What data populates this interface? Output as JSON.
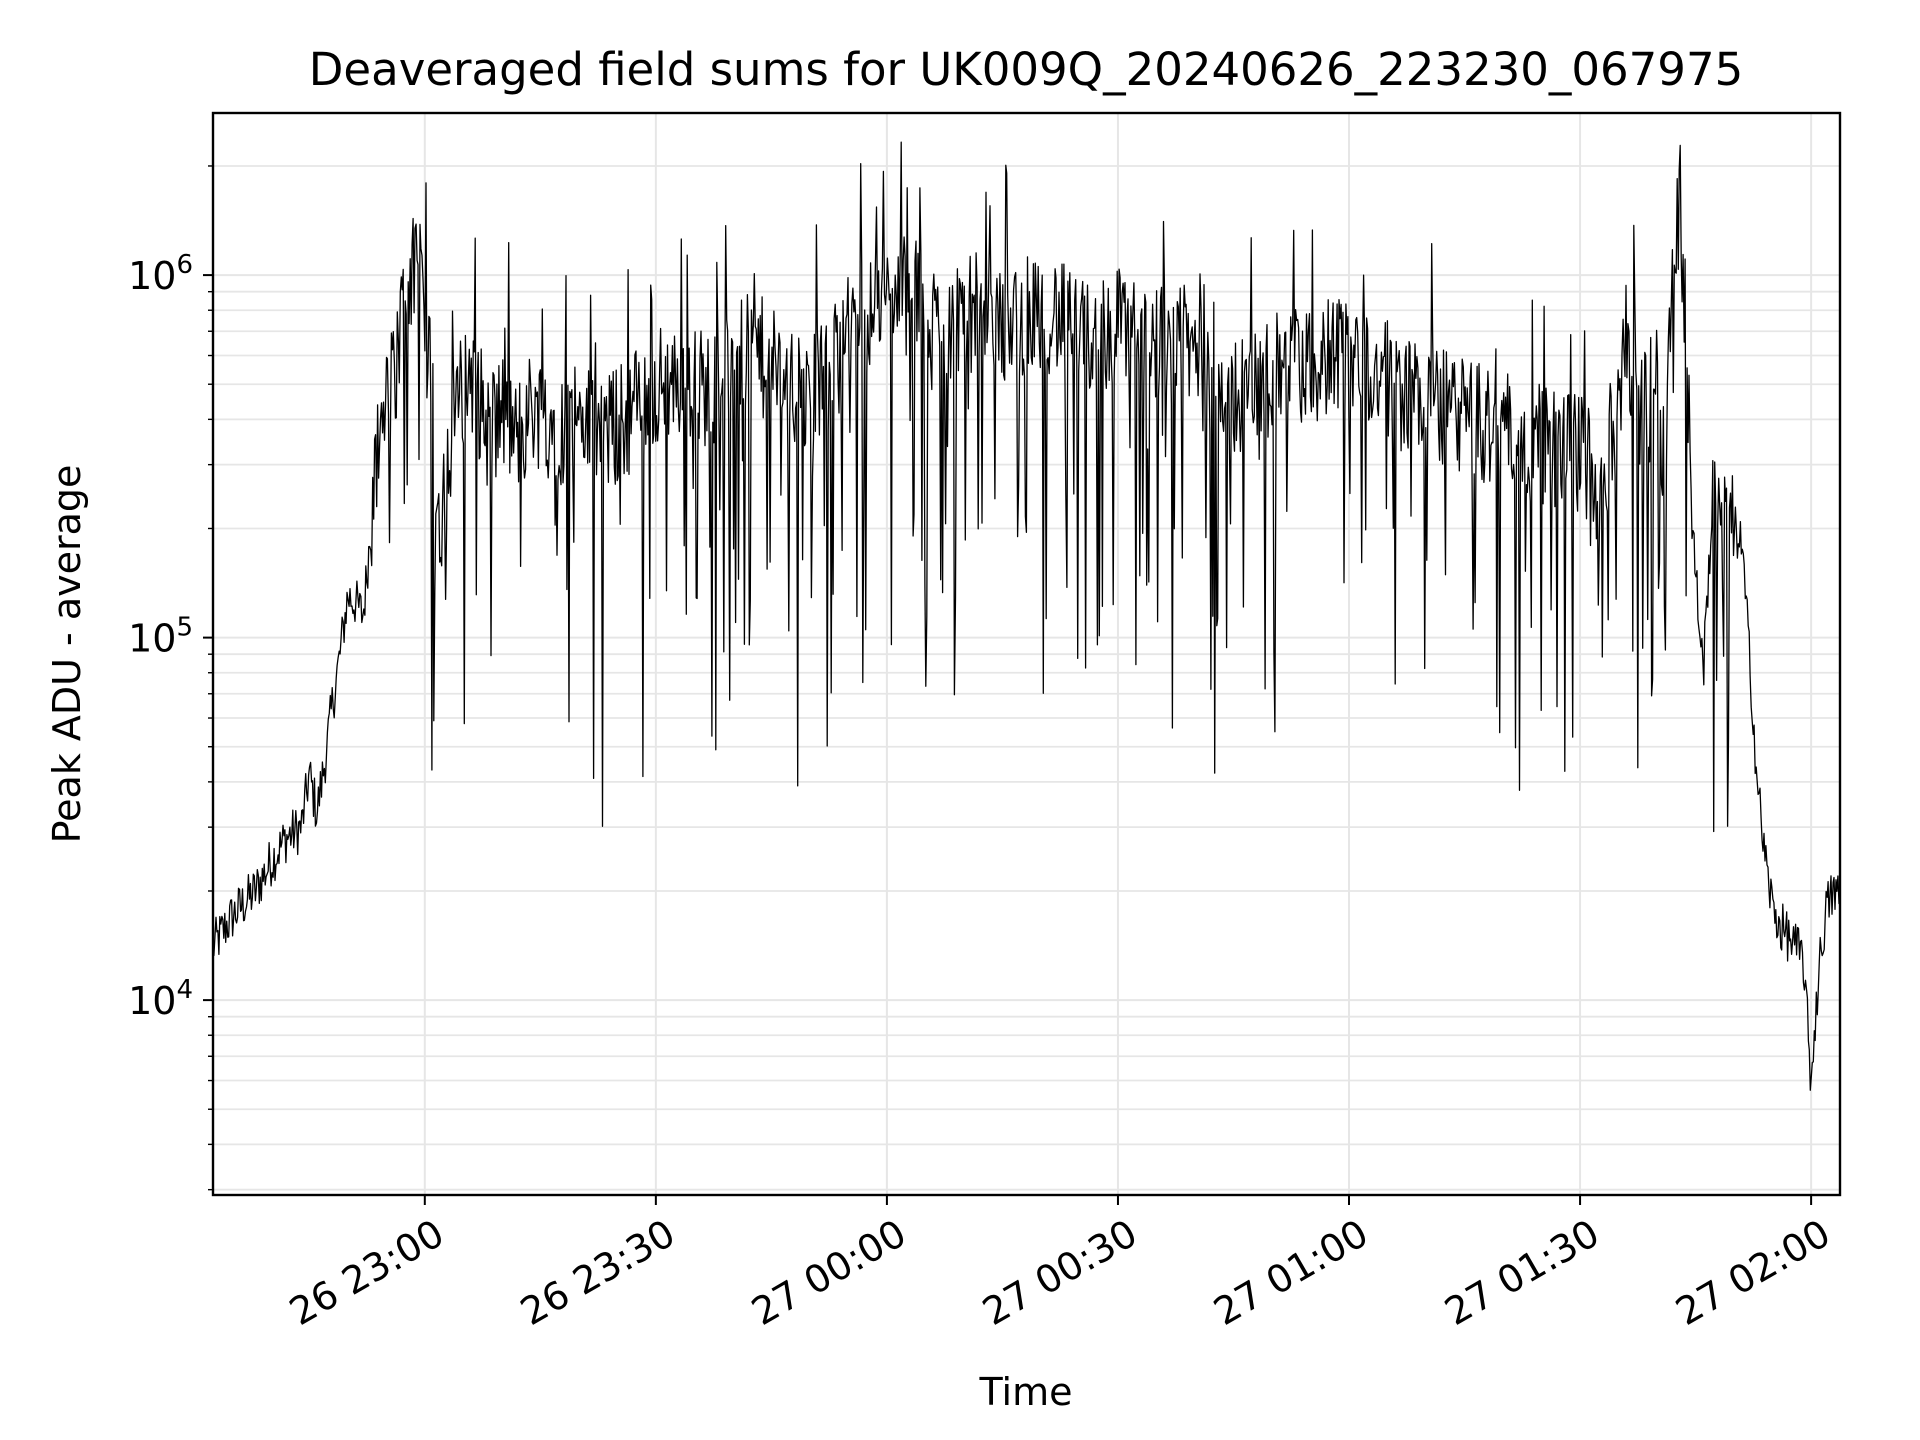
{
  "chart_data": {
    "type": "line",
    "title": "Deaveraged field sums for UK009Q_20240626_223230_067975",
    "xlabel": "Time",
    "ylabel": "Peak ADU - average",
    "y_scale": "log",
    "ylim": [
      2900,
      2800000
    ],
    "xlim": [
      "2024-06-26 22:32:30",
      "2024-06-27 02:03:45"
    ],
    "x_ticks": [
      {
        "value": "2024-06-26 23:00",
        "label": "26 23:00"
      },
      {
        "value": "2024-06-26 23:30",
        "label": "26 23:30"
      },
      {
        "value": "2024-06-27 00:00",
        "label": "27 00:00"
      },
      {
        "value": "2024-06-27 00:30",
        "label": "27 00:30"
      },
      {
        "value": "2024-06-27 01:00",
        "label": "27 01:00"
      },
      {
        "value": "2024-06-27 01:30",
        "label": "27 01:30"
      },
      {
        "value": "2024-06-27 02:00",
        "label": "27 02:00"
      }
    ],
    "y_ticks": [
      {
        "value": 10000,
        "base": "10",
        "exp": "4"
      },
      {
        "value": 100000,
        "base": "10",
        "exp": "5"
      },
      {
        "value": 1000000,
        "base": "10",
        "exp": "6"
      }
    ],
    "grid": true,
    "line_color": "#000000",
    "grid_color": "#e6e6e6",
    "series": [
      {
        "x": [
          "2024-06-26 22:32:30",
          "2024-06-26 22:35",
          "2024-06-26 22:38",
          "2024-06-26 22:40",
          "2024-06-26 22:42",
          "2024-06-26 22:44",
          "2024-06-26 22:45",
          "2024-06-26 22:46",
          "2024-06-26 22:47",
          "2024-06-26 22:48",
          "2024-06-26 22:49",
          "2024-06-26 22:50",
          "2024-06-26 22:51",
          "2024-06-26 22:52",
          "2024-06-26 22:53",
          "2024-06-26 22:54",
          "2024-06-26 22:55",
          "2024-06-26 22:56",
          "2024-06-26 22:57",
          "2024-06-26 22:58",
          "2024-06-26 22:59",
          "2024-06-26 23:00",
          "2024-06-26 23:01",
          "2024-06-26 23:02",
          "2024-06-26 23:03",
          "2024-06-26 23:04",
          "2024-06-26 23:06",
          "2024-06-26 23:08",
          "2024-06-26 23:10",
          "2024-06-26 23:12",
          "2024-06-26 23:14",
          "2024-06-26 23:16",
          "2024-06-26 23:18",
          "2024-06-26 23:20",
          "2024-06-26 23:22",
          "2024-06-26 23:25",
          "2024-06-26 23:28",
          "2024-06-26 23:31",
          "2024-06-26 23:34",
          "2024-06-26 23:37",
          "2024-06-26 23:40",
          "2024-06-26 23:43",
          "2024-06-26 23:46",
          "2024-06-26 23:49",
          "2024-06-26 23:52",
          "2024-06-26 23:55",
          "2024-06-26 23:58",
          "2024-06-27 00:01",
          "2024-06-27 00:04",
          "2024-06-27 00:07",
          "2024-06-27 00:10",
          "2024-06-27 00:13",
          "2024-06-27 00:16",
          "2024-06-27 00:19",
          "2024-06-27 00:22",
          "2024-06-27 00:25",
          "2024-06-27 00:28",
          "2024-06-27 00:31",
          "2024-06-27 00:34",
          "2024-06-27 00:37",
          "2024-06-27 00:40",
          "2024-06-27 00:43",
          "2024-06-27 00:46",
          "2024-06-27 00:49",
          "2024-06-27 00:52",
          "2024-06-27 00:55",
          "2024-06-27 00:58",
          "2024-06-27 01:01",
          "2024-06-27 01:04",
          "2024-06-27 01:07",
          "2024-06-27 01:10",
          "2024-06-27 01:13",
          "2024-06-27 01:16",
          "2024-06-27 01:19",
          "2024-06-27 01:22",
          "2024-06-27 01:25",
          "2024-06-27 01:28",
          "2024-06-27 01:30",
          "2024-06-27 01:32",
          "2024-06-27 01:33",
          "2024-06-27 01:34",
          "2024-06-27 01:36",
          "2024-06-27 01:38",
          "2024-06-27 01:40",
          "2024-06-27 01:41",
          "2024-06-27 01:42",
          "2024-06-27 01:43",
          "2024-06-27 01:44",
          "2024-06-27 01:45",
          "2024-06-27 01:46",
          "2024-06-27 01:47",
          "2024-06-27 01:48",
          "2024-06-27 01:49",
          "2024-06-27 01:50",
          "2024-06-27 01:51",
          "2024-06-27 01:52",
          "2024-06-27 01:53",
          "2024-06-27 01:54",
          "2024-06-27 01:55",
          "2024-06-27 01:56",
          "2024-06-27 01:57",
          "2024-06-27 01:58",
          "2024-06-27 01:59",
          "2024-06-27 02:00",
          "2024-06-27 02:01",
          "2024-06-27 02:02",
          "2024-06-27 02:03",
          "2024-06-27 02:03:45"
        ],
        "y": [
          14000,
          17000,
          20000,
          24000,
          28000,
          30000,
          42000,
          33000,
          45000,
          65000,
          90000,
          130000,
          125000,
          115000,
          200000,
          320000,
          420000,
          520000,
          760000,
          1000000,
          950000,
          700000,
          450000,
          180000,
          300000,
          420000,
          550000,
          380000,
          420000,
          350000,
          440000,
          400000,
          380000,
          420000,
          360000,
          380000,
          450000,
          500000,
          520000,
          480000,
          560000,
          620000,
          520000,
          450000,
          500000,
          700000,
          800000,
          900000,
          850000,
          700000,
          820000,
          750000,
          720000,
          800000,
          780000,
          650000,
          700000,
          720000,
          680000,
          650000,
          620000,
          420000,
          480000,
          500000,
          560000,
          550000,
          620000,
          580000,
          520000,
          480000,
          450000,
          420000,
          400000,
          380000,
          360000,
          340000,
          330000,
          320000,
          300000,
          250000,
          350000,
          600000,
          400000,
          500000,
          320000,
          1000000,
          1700000,
          500000,
          150000,
          80000,
          200000,
          250000,
          300000,
          200000,
          180000,
          90000,
          40000,
          25000,
          18000,
          16000,
          15000,
          14000,
          13000,
          6000,
          12000,
          18000,
          20000,
          19000
        ]
      }
    ]
  }
}
